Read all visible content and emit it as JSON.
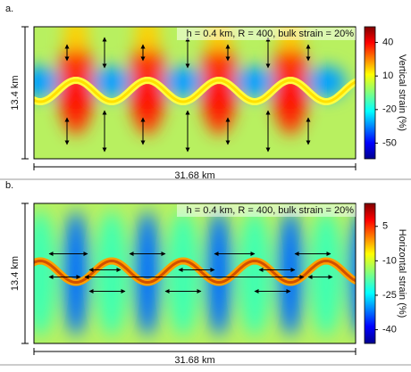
{
  "chart_data": [
    {
      "type": "field",
      "label": "a.",
      "title": "h = 0.4 km, R = 400, bulk strain = 20%",
      "y_label": "13.4 km",
      "x_label": "31.68 km",
      "colorbar": {
        "label": "Vertical strain (%)",
        "lim": [
          -64,
          54
        ],
        "ticks": [
          40,
          10,
          -20,
          -50
        ]
      }
    },
    {
      "type": "field",
      "label": "b.",
      "title": "h = 0.4 km, R = 400, bulk strain = 20%",
      "y_label": "13.4 km",
      "x_label": "31.68 km",
      "colorbar": {
        "label": "Horizontal strain (%)",
        "lim": [
          -46,
          15
        ],
        "ticks": [
          5,
          -10,
          -25,
          -40
        ]
      }
    }
  ]
}
